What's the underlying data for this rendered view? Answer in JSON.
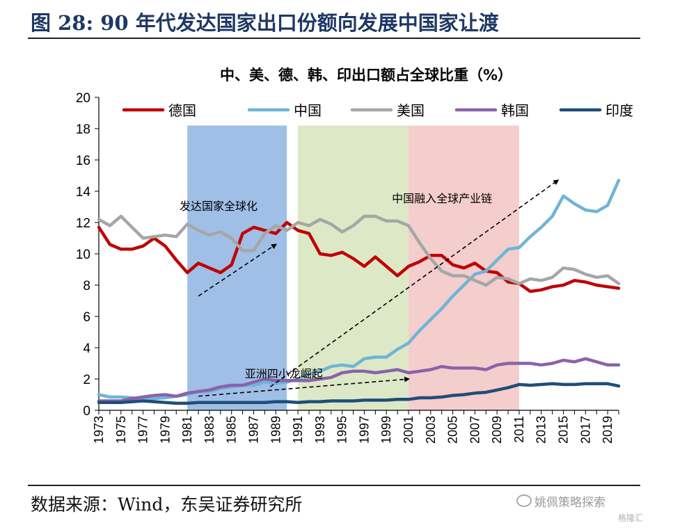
{
  "figure": {
    "title": "图 28:  90 年代发达国家出口份额向发展中国家让渡",
    "source": "数据来源：Wind，东吴证券研究所",
    "watermark": "姚佩策略探索",
    "watermark2": "格隆汇"
  },
  "chart_data": {
    "type": "line",
    "title": "中、美、德、韩、印出口额占全球比重（%）",
    "xlabel": "",
    "ylabel": "",
    "xlim": [
      1973,
      2020
    ],
    "ylim": [
      0,
      20
    ],
    "yticks": [
      0,
      2,
      4,
      6,
      8,
      10,
      12,
      14,
      16,
      18,
      20
    ],
    "xtick_labels": [
      "1973",
      "1975",
      "1977",
      "1979",
      "1981",
      "1983",
      "1985",
      "1987",
      "1989",
      "1991",
      "1993",
      "1995",
      "1997",
      "1999",
      "2001",
      "2003",
      "2005",
      "2007",
      "2009",
      "2011",
      "2013",
      "2015",
      "2017",
      "2019"
    ],
    "legend_position": "top",
    "grid": false,
    "x": [
      1973,
      1974,
      1975,
      1976,
      1977,
      1978,
      1979,
      1980,
      1981,
      1982,
      1983,
      1984,
      1985,
      1986,
      1987,
      1988,
      1989,
      1990,
      1991,
      1992,
      1993,
      1994,
      1995,
      1996,
      1997,
      1998,
      1999,
      2000,
      2001,
      2002,
      2003,
      2004,
      2005,
      2006,
      2007,
      2008,
      2009,
      2010,
      2011,
      2012,
      2013,
      2014,
      2015,
      2016,
      2017,
      2018,
      2019,
      2020
    ],
    "series": [
      {
        "name": "德国",
        "color": "#c00000",
        "values": [
          11.7,
          10.6,
          10.3,
          10.3,
          10.5,
          11.0,
          10.5,
          9.6,
          8.8,
          9.4,
          9.1,
          8.8,
          9.3,
          11.3,
          11.7,
          11.5,
          11.3,
          12.0,
          11.5,
          11.3,
          10.0,
          9.9,
          10.1,
          9.7,
          9.2,
          9.8,
          9.2,
          8.6,
          9.2,
          9.5,
          9.9,
          9.9,
          9.3,
          9.1,
          9.4,
          8.9,
          8.8,
          8.2,
          8.1,
          7.6,
          7.7,
          7.9,
          8.0,
          8.3,
          8.2,
          8.0,
          7.9,
          7.8
        ]
      },
      {
        "name": "中国",
        "color": "#6fb5d5",
        "values": [
          1.0,
          0.85,
          0.85,
          0.8,
          0.7,
          0.75,
          0.8,
          0.9,
          1.0,
          1.2,
          1.2,
          1.4,
          1.5,
          1.6,
          1.6,
          1.8,
          1.7,
          1.8,
          2.0,
          2.3,
          2.5,
          2.8,
          2.9,
          2.8,
          3.3,
          3.4,
          3.4,
          3.9,
          4.3,
          5.1,
          5.8,
          6.5,
          7.3,
          8.0,
          8.7,
          8.9,
          9.6,
          10.3,
          10.4,
          11.1,
          11.7,
          12.4,
          13.7,
          13.2,
          12.8,
          12.7,
          13.1,
          14.7
        ]
      },
      {
        "name": "美国",
        "color": "#a6a6a6",
        "values": [
          12.2,
          11.8,
          12.4,
          11.7,
          11.0,
          11.1,
          11.2,
          11.1,
          11.9,
          11.5,
          11.2,
          11.4,
          11.0,
          10.2,
          10.2,
          11.3,
          11.8,
          11.5,
          12.0,
          11.8,
          12.2,
          11.9,
          11.4,
          11.8,
          12.4,
          12.4,
          12.1,
          12.1,
          11.8,
          10.7,
          9.7,
          8.9,
          8.6,
          8.6,
          8.3,
          8.0,
          8.5,
          8.4,
          8.1,
          8.4,
          8.3,
          8.5,
          9.1,
          9.0,
          8.7,
          8.5,
          8.6,
          8.1
        ]
      },
      {
        "name": "韩国",
        "color": "#8a62aa",
        "values": [
          0.6,
          0.6,
          0.6,
          0.75,
          0.85,
          0.95,
          1.0,
          0.9,
          1.1,
          1.2,
          1.3,
          1.5,
          1.6,
          1.6,
          1.8,
          2.0,
          1.9,
          1.9,
          1.9,
          1.9,
          2.0,
          2.1,
          2.4,
          2.5,
          2.5,
          2.4,
          2.5,
          2.6,
          2.4,
          2.5,
          2.6,
          2.8,
          2.7,
          2.7,
          2.7,
          2.6,
          2.9,
          3.0,
          3.0,
          3.0,
          2.9,
          3.0,
          3.2,
          3.1,
          3.3,
          3.1,
          2.9,
          2.9
        ]
      },
      {
        "name": "印度",
        "color": "#1f4e79",
        "values": [
          0.5,
          0.5,
          0.5,
          0.55,
          0.6,
          0.55,
          0.5,
          0.45,
          0.45,
          0.5,
          0.5,
          0.5,
          0.5,
          0.5,
          0.5,
          0.5,
          0.55,
          0.55,
          0.5,
          0.55,
          0.55,
          0.6,
          0.6,
          0.6,
          0.65,
          0.65,
          0.65,
          0.7,
          0.7,
          0.8,
          0.8,
          0.85,
          0.95,
          1.0,
          1.1,
          1.15,
          1.3,
          1.45,
          1.65,
          1.6,
          1.65,
          1.7,
          1.65,
          1.65,
          1.7,
          1.7,
          1.7,
          1.55
        ]
      }
    ],
    "shaded_regions": [
      {
        "from": 1981,
        "to": 1990,
        "color": "#8eb4e3"
      },
      {
        "from": 1991,
        "to": 2001,
        "color": "#d7e4bd"
      },
      {
        "from": 2001,
        "to": 2011,
        "color": "#f2c4c4"
      }
    ],
    "annotations": [
      {
        "text": "发达国家全球化",
        "x": 1980.3,
        "y": 12.8,
        "arrow": [
          [
            1982.0,
            7.3
          ],
          [
            1989.0,
            10.6
          ]
        ]
      },
      {
        "text": "亚洲四小龙崛起",
        "x": 1986.2,
        "y": 2.1,
        "arrow": [
          [
            1982.0,
            0.9
          ],
          [
            2001.0,
            2.0
          ]
        ]
      },
      {
        "text": "中国融入全球产业链",
        "x": 1999.5,
        "y": 13.3,
        "arrow": [
          [
            1988.5,
            1.5
          ],
          [
            2014.5,
            14.7
          ]
        ]
      }
    ]
  }
}
